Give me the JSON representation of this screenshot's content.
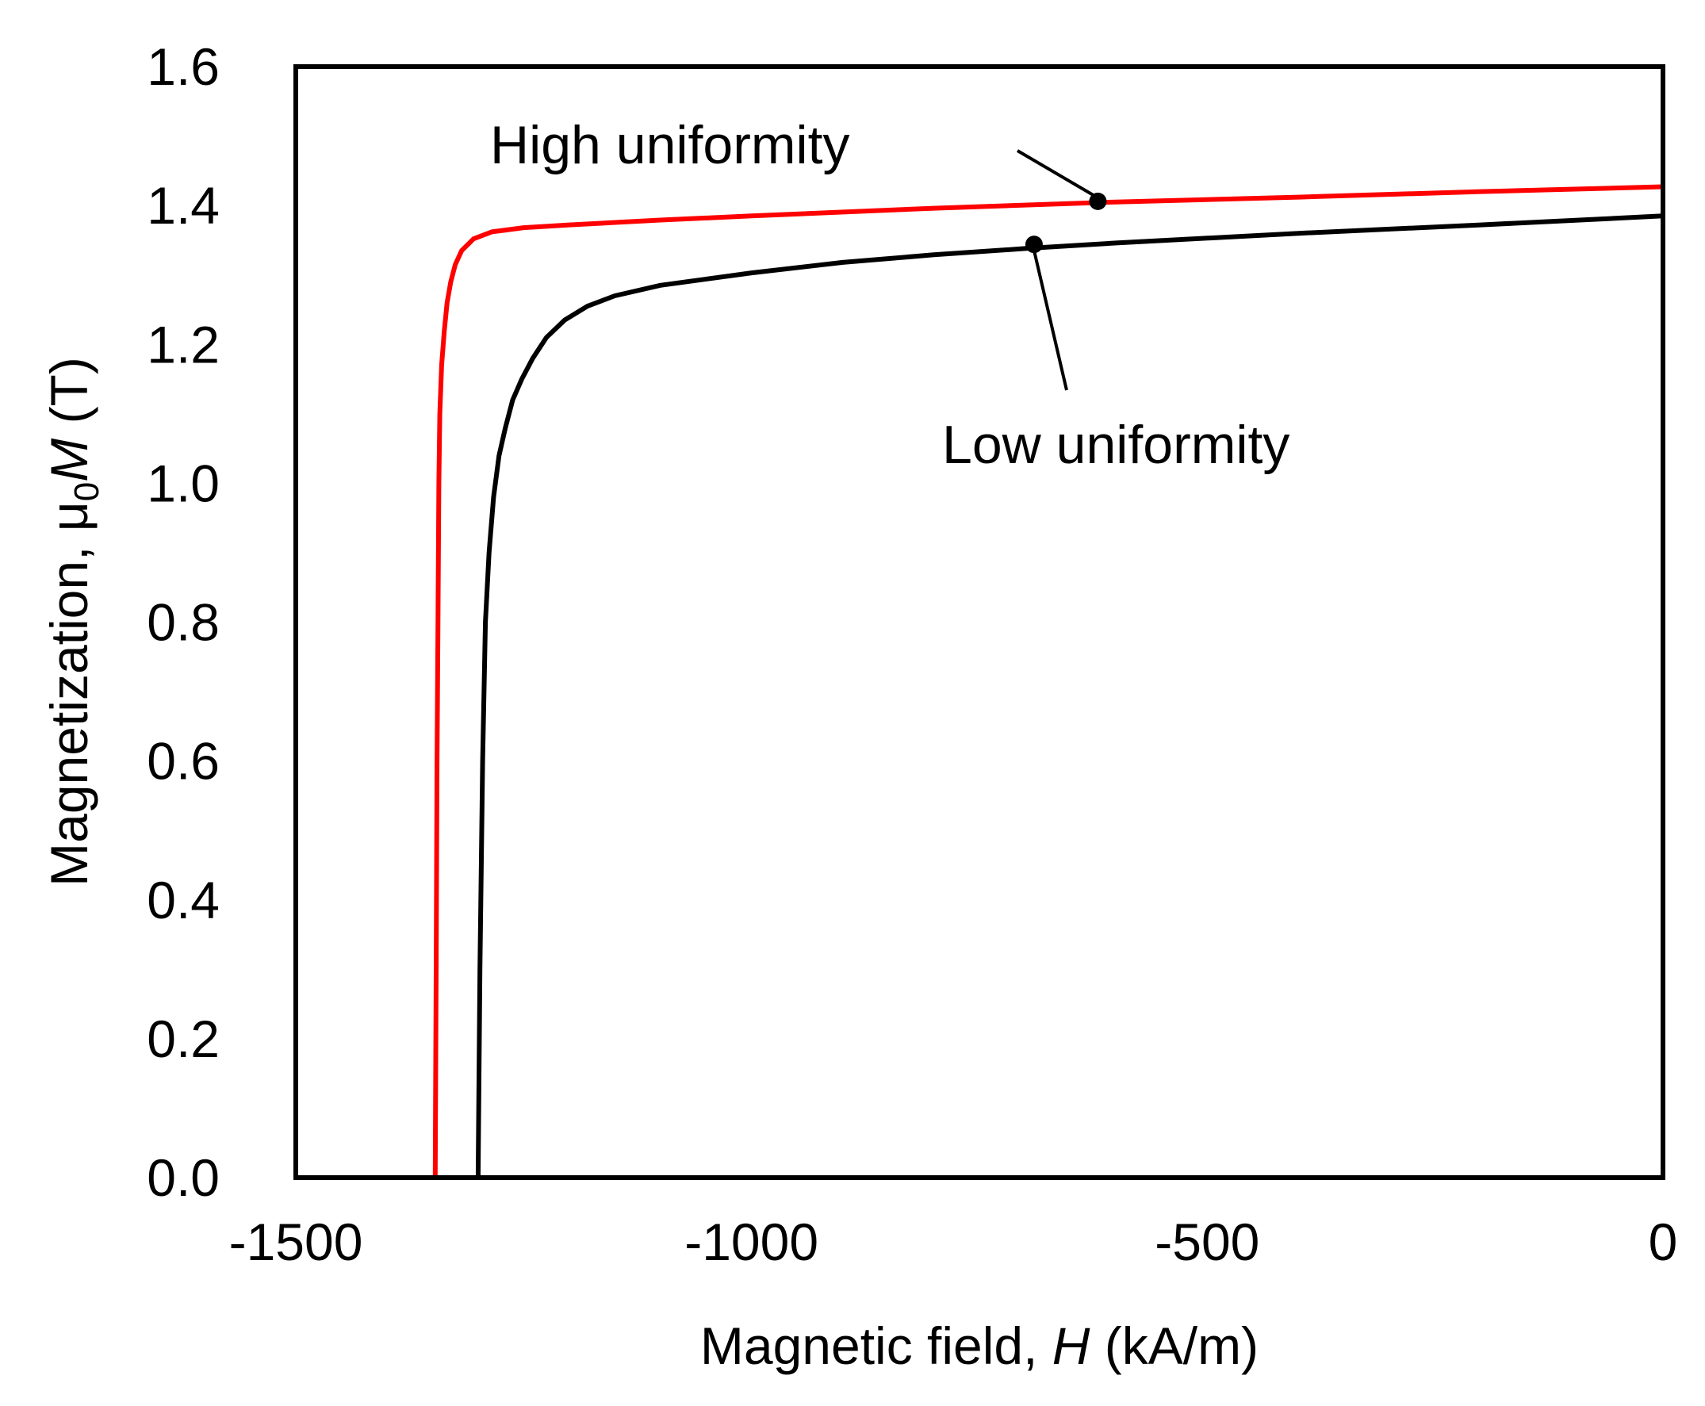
{
  "chart_data": {
    "type": "line",
    "title": "",
    "xlabel": {
      "prefix": "Magnetic field, ",
      "symbol": "H",
      "suffix": " (kA/m)"
    },
    "ylabel": {
      "prefix": "Magnetization, μ",
      "subscript": "0",
      "symbol": "M",
      "suffix": " (T)"
    },
    "xlim": [
      -1500,
      0
    ],
    "ylim": [
      0,
      1.6
    ],
    "x_ticks": [
      {
        "value": -1500,
        "label": "-1500"
      },
      {
        "value": -1000,
        "label": "-1000"
      },
      {
        "value": -500,
        "label": "-500"
      },
      {
        "value": 0,
        "label": "0"
      }
    ],
    "y_ticks": [
      {
        "value": 0.0,
        "label": "0.0"
      },
      {
        "value": 0.2,
        "label": "0.2"
      },
      {
        "value": 0.4,
        "label": "0.4"
      },
      {
        "value": 0.6,
        "label": "0.6"
      },
      {
        "value": 0.8,
        "label": "0.8"
      },
      {
        "value": 1.0,
        "label": "1.0"
      },
      {
        "value": 1.2,
        "label": "1.2"
      },
      {
        "value": 1.4,
        "label": "1.4"
      },
      {
        "value": 1.6,
        "label": "1.6"
      }
    ],
    "grid": false,
    "series": [
      {
        "name": "High uniformity",
        "color": "#ff0000",
        "x": [
          -1347,
          -1346,
          -1345,
          -1344,
          -1343,
          -1342,
          -1340,
          -1337,
          -1334,
          -1330,
          -1325,
          -1318,
          -1305,
          -1285,
          -1250,
          -1200,
          -1100,
          -1000,
          -800,
          -600,
          -400,
          -200,
          0
        ],
        "y": [
          0.0,
          0.3,
          0.6,
          0.8,
          1.0,
          1.1,
          1.17,
          1.22,
          1.26,
          1.29,
          1.315,
          1.335,
          1.352,
          1.362,
          1.368,
          1.372,
          1.379,
          1.385,
          1.396,
          1.405,
          1.412,
          1.42,
          1.427
        ]
      },
      {
        "name": "Low uniformity",
        "color": "#000000",
        "x": [
          -1300,
          -1298,
          -1295,
          -1292,
          -1288,
          -1283,
          -1277,
          -1270,
          -1262,
          -1252,
          -1240,
          -1225,
          -1205,
          -1180,
          -1150,
          -1100,
          -1000,
          -900,
          -800,
          -700,
          -600,
          -400,
          -200,
          0
        ],
        "y": [
          0.0,
          0.3,
          0.6,
          0.8,
          0.9,
          0.98,
          1.04,
          1.08,
          1.12,
          1.15,
          1.18,
          1.21,
          1.235,
          1.255,
          1.27,
          1.285,
          1.303,
          1.318,
          1.329,
          1.338,
          1.346,
          1.36,
          1.372,
          1.385
        ]
      }
    ],
    "annotations": [
      {
        "text": "High uniformity",
        "series": "High uniformity",
        "point": [
          -620,
          1.406
        ]
      },
      {
        "text": "Low uniformity",
        "series": "Low uniformity",
        "point": [
          -690,
          1.344
        ]
      }
    ]
  }
}
